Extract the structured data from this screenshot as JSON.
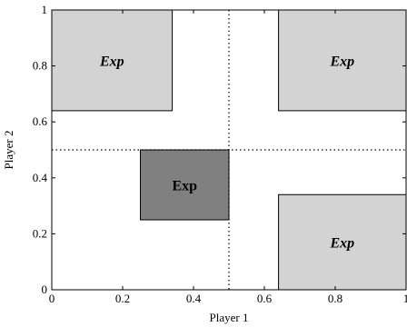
{
  "chart_data": {
    "type": "region",
    "xlabel": "Player 1",
    "ylabel": "Player 2",
    "xlim": [
      0,
      1
    ],
    "ylim": [
      0,
      1
    ],
    "x_ticks": [
      0,
      0.2,
      0.4,
      0.6,
      0.8,
      1
    ],
    "y_ticks": [
      0,
      0.2,
      0.4,
      0.6,
      0.8,
      1
    ],
    "x_tick_labels": [
      "0",
      "0.2",
      "0.4",
      "0.6",
      "0.8",
      "1"
    ],
    "y_tick_labels": [
      "0",
      "0.2",
      "0.4",
      "0.6",
      "0.8",
      "1"
    ],
    "reference_lines": [
      {
        "orientation": "vertical",
        "value": 0.5,
        "style": "dotted"
      },
      {
        "orientation": "horizontal",
        "value": 0.5,
        "style": "dotted"
      }
    ],
    "regions": [
      {
        "label": "Exp",
        "x": [
          0,
          0.34
        ],
        "y": [
          0.64,
          1
        ],
        "fill": "#d3d3d3",
        "italic": true
      },
      {
        "label": "Exp",
        "x": [
          0.64,
          1
        ],
        "y": [
          0.64,
          1
        ],
        "fill": "#d3d3d3",
        "italic": true
      },
      {
        "label": "Exp",
        "x": [
          0.64,
          1
        ],
        "y": [
          0,
          0.34
        ],
        "fill": "#d3d3d3",
        "italic": true
      },
      {
        "label": "Exp",
        "x": [
          0.25,
          0.5
        ],
        "y": [
          0.25,
          0.5
        ],
        "fill": "#808080",
        "italic": false
      }
    ]
  }
}
